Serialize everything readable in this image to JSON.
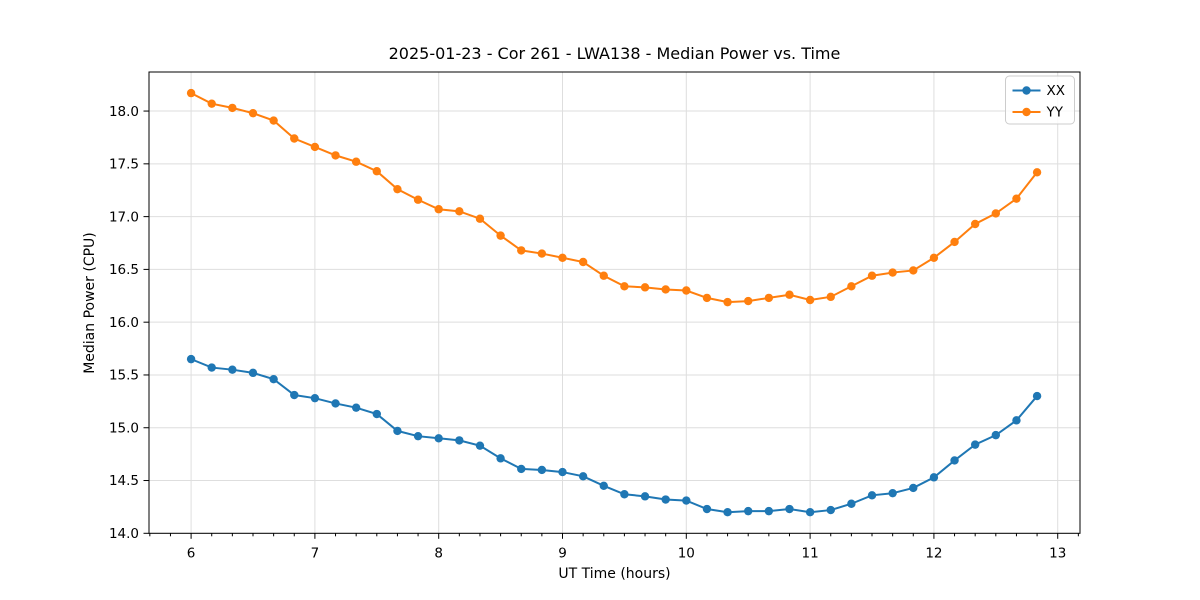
{
  "chart_data": {
    "type": "line",
    "title": "2025-01-23 - Cor 261 - LWA138 - Median Power vs. Time",
    "xlabel": "UT Time (hours)",
    "ylabel": "Median Power (CPU)",
    "x": [
      6.0,
      6.1667,
      6.3333,
      6.5,
      6.6667,
      6.8333,
      7.0,
      7.1667,
      7.3333,
      7.5,
      7.6667,
      7.8333,
      8.0,
      8.1667,
      8.3333,
      8.5,
      8.6667,
      8.8333,
      9.0,
      9.1667,
      9.3333,
      9.5,
      9.6667,
      9.8333,
      10.0,
      10.1667,
      10.3333,
      10.5,
      10.6667,
      10.8333,
      11.0,
      11.1667,
      11.3333,
      11.5,
      11.6667,
      11.8333,
      12.0,
      12.1667,
      12.3333,
      12.5,
      12.6667,
      12.8333
    ],
    "series": [
      {
        "name": "XX",
        "color": "#1f77b4",
        "values": [
          15.65,
          15.57,
          15.55,
          15.52,
          15.46,
          15.31,
          15.28,
          15.23,
          15.19,
          15.13,
          14.97,
          14.92,
          14.9,
          14.88,
          14.83,
          14.71,
          14.61,
          14.6,
          14.58,
          14.54,
          14.45,
          14.37,
          14.35,
          14.32,
          14.31,
          14.23,
          14.2,
          14.21,
          14.21,
          14.23,
          14.2,
          14.22,
          14.28,
          14.36,
          14.38,
          14.43,
          14.53,
          14.69,
          14.84,
          14.93,
          15.07,
          15.3
        ]
      },
      {
        "name": "YY",
        "color": "#ff7f0e",
        "values": [
          18.17,
          18.07,
          18.03,
          17.98,
          17.91,
          17.74,
          17.66,
          17.58,
          17.52,
          17.43,
          17.26,
          17.16,
          17.07,
          17.05,
          16.98,
          16.82,
          16.68,
          16.65,
          16.61,
          16.57,
          16.44,
          16.34,
          16.33,
          16.31,
          16.3,
          16.23,
          16.19,
          16.2,
          16.23,
          16.26,
          16.21,
          16.24,
          16.34,
          16.44,
          16.47,
          16.49,
          16.61,
          16.76,
          16.93,
          17.03,
          17.17,
          17.42
        ]
      }
    ],
    "xlim": [
      5.66,
      13.18
    ],
    "ylim": [
      14.0,
      18.37
    ],
    "x_ticks": [
      6,
      7,
      8,
      9,
      10,
      11,
      12,
      13
    ],
    "y_ticks": [
      "14.0",
      "14.5",
      "15.0",
      "15.5",
      "16.0",
      "16.5",
      "17.0",
      "17.5",
      "18.0"
    ],
    "x_minor_divisions": 6,
    "grid": true,
    "grid_color": "#dedede",
    "legend_position": "upper right",
    "legend_labels": [
      "XX",
      "YY"
    ],
    "marker": "circle",
    "background": "#ffffff",
    "spine_color": "#000000"
  }
}
